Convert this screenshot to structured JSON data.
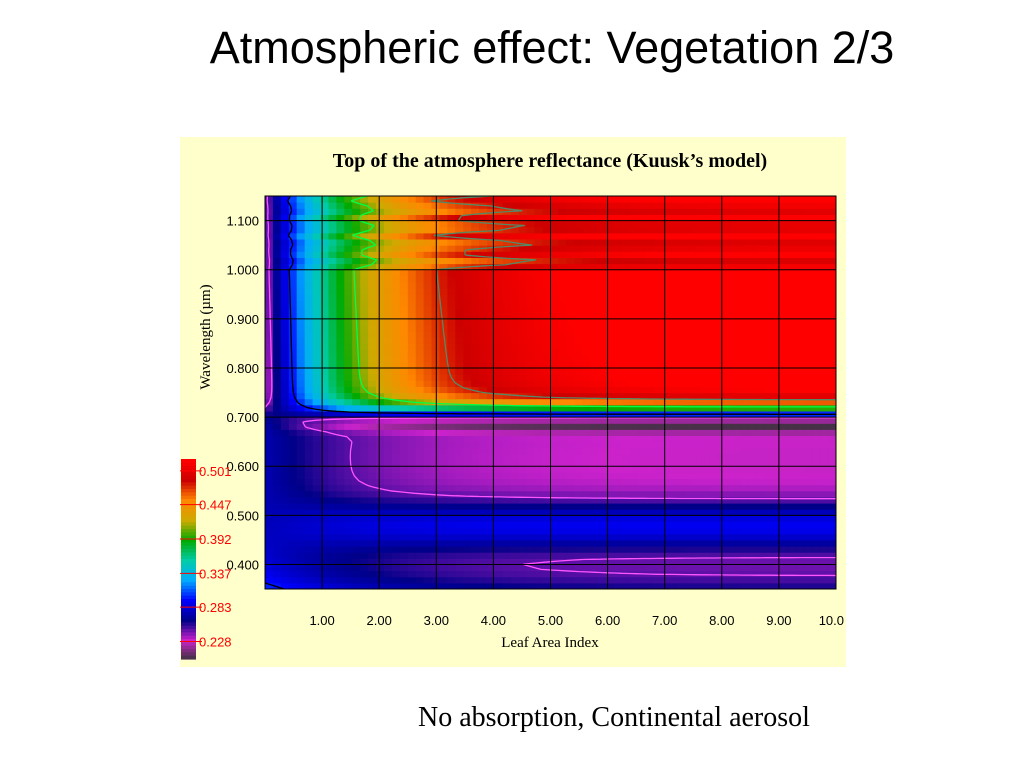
{
  "slide": {
    "title": "Atmospheric effect: Vegetation 2/3",
    "caption": "No absorption, Continental aerosol"
  },
  "chart_data": {
    "type": "heatmap",
    "title": "Top of the atmosphere reflectance (Kuusk’s model)",
    "xlabel": "Leaf Area Index",
    "ylabel": "Wavelength (µm)",
    "xlim": [
      0,
      10
    ],
    "ylim": [
      0.35,
      1.15
    ],
    "x_ticks": [
      "1.00",
      "2.00",
      "3.00",
      "4.00",
      "5.00",
      "6.00",
      "7.00",
      "8.00",
      "9.00",
      "10.0"
    ],
    "x_tick_values": [
      1,
      2,
      3,
      4,
      5,
      6,
      7,
      8,
      9,
      10
    ],
    "y_ticks": [
      "0.400",
      "0.500",
      "0.600",
      "0.700",
      "0.800",
      "0.900",
      "1.000",
      "1.100"
    ],
    "y_tick_values": [
      0.4,
      0.5,
      0.6,
      0.7,
      0.8,
      0.9,
      1.0,
      1.1
    ],
    "grid": true,
    "colorbar": {
      "labels": [
        "0.501",
        "0.447",
        "0.392",
        "0.337",
        "0.283",
        "0.228"
      ],
      "values": [
        0.501,
        0.447,
        0.392,
        0.337,
        0.283,
        0.228
      ],
      "range": [
        0.2,
        0.52
      ],
      "colors": [
        "#333333",
        "#cc22cc",
        "#000088",
        "#0000ff",
        "#00aaff",
        "#00ccaa",
        "#00aa00",
        "#ccaa00",
        "#ff8800",
        "#cc0000",
        "#ff0000"
      ]
    },
    "contour_colors": [
      "#ff55ff",
      "#000000",
      "#00ff44",
      "#558866"
    ],
    "contour_levels": [
      0.25,
      0.3,
      0.41,
      0.48
    ]
  }
}
